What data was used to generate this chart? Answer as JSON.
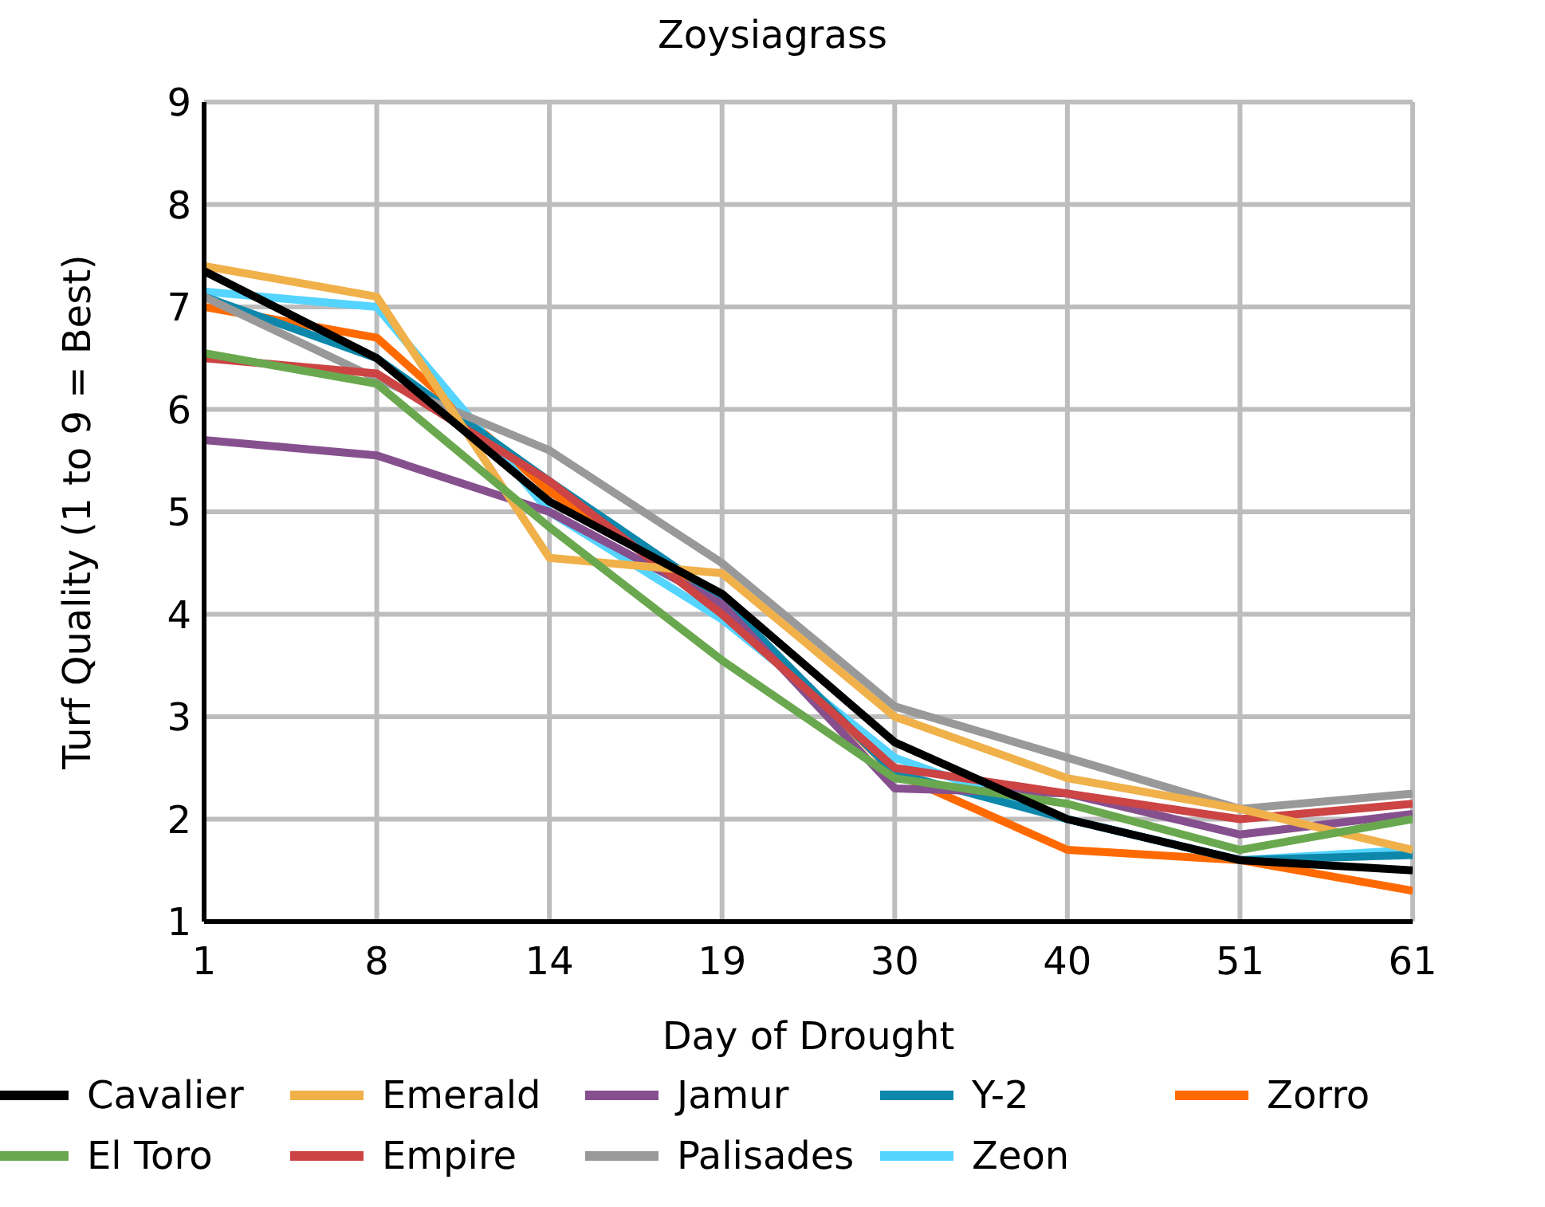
{
  "chart_data": {
    "type": "line",
    "title": "Zoysiagrass",
    "xlabel": "Day of Drought",
    "ylabel": "Turf Quality (1 to 9 = Best)",
    "categories": [
      "1",
      "8",
      "14",
      "19",
      "30",
      "40",
      "51",
      "61"
    ],
    "ylim": [
      1,
      9
    ],
    "yticks": [
      1,
      2,
      3,
      4,
      5,
      6,
      7,
      8,
      9
    ],
    "grid": true,
    "legend": "bottom",
    "marker": "none",
    "line_style": "solid",
    "series": [
      {
        "name": "Cavalier",
        "color": "#000000",
        "values": [
          7.35,
          6.5,
          5.1,
          4.2,
          2.75,
          2.0,
          1.6,
          1.5
        ]
      },
      {
        "name": "El Toro",
        "color": "#6aa84f",
        "values": [
          6.55,
          6.25,
          4.85,
          3.55,
          2.4,
          2.15,
          1.7,
          2.0
        ]
      },
      {
        "name": "Emerald",
        "color": "#f0b04a",
        "values": [
          7.4,
          7.1,
          4.55,
          4.4,
          3.0,
          2.4,
          2.1,
          1.7
        ]
      },
      {
        "name": "Empire",
        "color": "#cc4444",
        "values": [
          6.5,
          6.35,
          5.3,
          4.0,
          2.5,
          2.25,
          2.0,
          2.15
        ]
      },
      {
        "name": "Jamur",
        "color": "#86508f",
        "values": [
          5.7,
          5.55,
          5.0,
          4.1,
          2.3,
          2.25,
          1.85,
          2.05
        ]
      },
      {
        "name": "Palisades",
        "color": "#999999",
        "values": [
          7.1,
          6.3,
          5.6,
          4.5,
          3.1,
          2.6,
          2.1,
          2.25
        ]
      },
      {
        "name": "Y-2",
        "color": "#0e88aa",
        "values": [
          7.1,
          6.5,
          5.3,
          4.15,
          2.45,
          2.0,
          1.6,
          1.65
        ]
      },
      {
        "name": "Zeon",
        "color": "#55d4ff",
        "values": [
          7.15,
          7.0,
          5.0,
          3.95,
          2.6,
          2.0,
          1.6,
          1.7
        ]
      },
      {
        "name": "Zorro",
        "color": "#ff6a00",
        "values": [
          7.0,
          6.7,
          5.2,
          4.1,
          2.45,
          1.7,
          1.6,
          1.3
        ]
      }
    ]
  }
}
